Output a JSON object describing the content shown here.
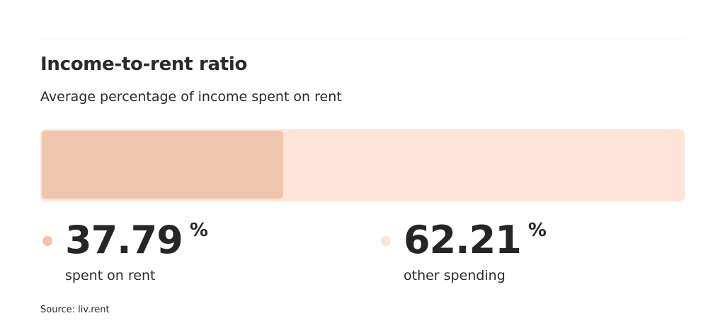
{
  "title": "Income-to-rent ratio",
  "subtitle": "Average percentage of income spent on rent",
  "source": "Source: liv.rent",
  "colors": {
    "rent": "#f0c5ad",
    "other": "#fde4d6",
    "text": "#2b2b2b"
  },
  "chart_data": {
    "type": "bar",
    "title": "Income-to-rent ratio",
    "subtitle": "Average percentage of income spent on rent",
    "stacked": true,
    "orientation": "horizontal",
    "xlim": [
      0,
      100
    ],
    "grid": false,
    "series": [
      {
        "name": "spent on rent",
        "value": 37.79,
        "value_label": "37.79",
        "unit": "%",
        "color": "#f0c5ad"
      },
      {
        "name": "other spending",
        "value": 62.21,
        "value_label": "62.21",
        "unit": "%",
        "color": "#fde4d6"
      }
    ]
  }
}
